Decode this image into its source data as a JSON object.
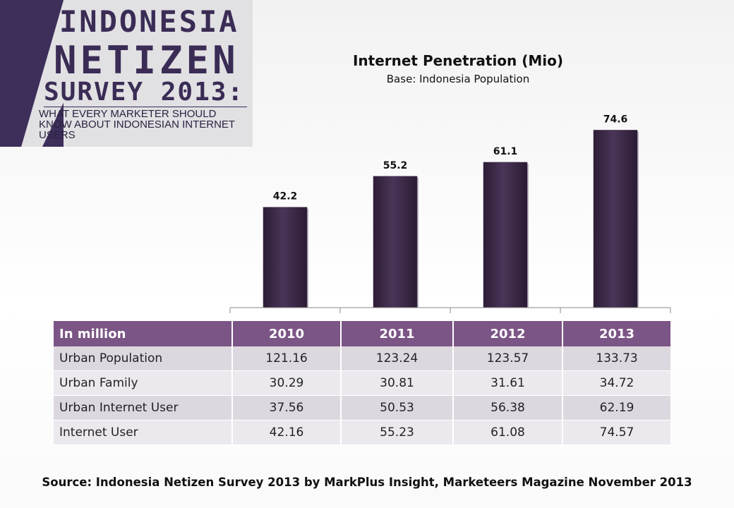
{
  "logo": {
    "line1": "INDONESIA",
    "line2": "NETIZEN",
    "line3": "SURVEY 2013:",
    "subtitle": "WHAT EVERY MARKETER SHOULD KNOW ABOUT INDONESIAN INTERNET USERS"
  },
  "chart_data": {
    "type": "bar",
    "title": "Internet Penetration (Mio)",
    "subtitle": "Base: Indonesia Population",
    "categories": [
      "2010",
      "2011",
      "2012",
      "2013"
    ],
    "values": [
      42.2,
      55.2,
      61.1,
      74.6
    ],
    "data_labels": [
      "42.2",
      "55.2",
      "61.1",
      "74.6"
    ],
    "bar_color": "#3e2b4a",
    "ylim": [
      0,
      86
    ],
    "grid": false,
    "legend": "none"
  },
  "table": {
    "header": [
      "In million",
      "2010",
      "2011",
      "2012",
      "2013"
    ],
    "rows": [
      [
        "Urban Population",
        "121.16",
        "123.24",
        "123.57",
        "133.73"
      ],
      [
        "Urban Family",
        "30.29",
        "30.81",
        "31.61",
        "34.72"
      ],
      [
        "Urban Internet User",
        "37.56",
        "50.53",
        "56.38",
        "62.19"
      ],
      [
        "Internet User",
        "42.16",
        "55.23",
        "61.08",
        "74.57"
      ]
    ],
    "header_color": "#7b5585"
  },
  "source": "Source: Indonesia Netizen Survey 2013 by MarkPlus Insight, Marketeers Magazine November 2013"
}
